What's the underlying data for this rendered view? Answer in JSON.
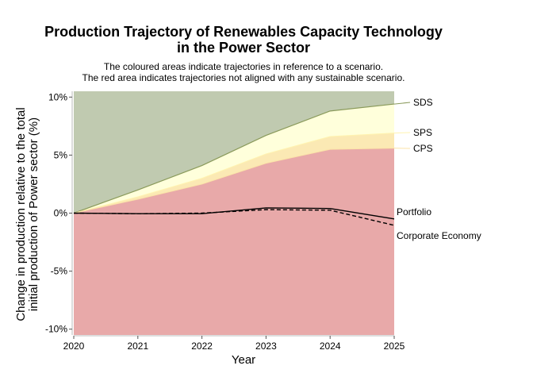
{
  "title_line1": "Production Trajectory of Renewables Capacity Technology",
  "title_line2": "in the Power Sector",
  "subtitle_line1": "The coloured areas indicate trajectories in reference to a scenario.",
  "subtitle_line2": "The red area indicates trajectories not aligned with any sustainable scenario.",
  "colors": {
    "sds_area": "#c0cab0",
    "sps_area": "#ffffdb",
    "cps_area": "#fbe9b4",
    "red_area": "#e8a9a9",
    "sds_line": "#8a9a5b",
    "sps_line": "#ffffcc",
    "cps_line": "#fbe3a8"
  },
  "chart_data": {
    "type": "area",
    "x": [
      2020,
      2021,
      2022,
      2023,
      2024,
      2025
    ],
    "xlabel": "Year",
    "ylabel_line1": "Change in production relative to the total",
    "ylabel_line2": "initial production of Power sector (%)",
    "ylim": [
      -10.5,
      10.5
    ],
    "yticks": [
      -10,
      -5,
      0,
      5,
      10
    ],
    "ytick_labels": [
      "-10%",
      "-5%",
      "0%",
      "5%",
      "10%"
    ],
    "grid": false,
    "bands": [
      {
        "name": "SDS",
        "values": [
          0,
          2.0,
          4.1,
          6.7,
          8.8,
          9.4
        ]
      },
      {
        "name": "SPS",
        "values": [
          0,
          1.4,
          3.0,
          5.1,
          6.6,
          6.9
        ]
      },
      {
        "name": "CPS",
        "values": [
          0,
          1.2,
          2.5,
          4.3,
          5.5,
          5.6
        ]
      }
    ],
    "series": [
      {
        "name": "Portfolio",
        "style": "solid",
        "values": [
          0,
          -0.05,
          -0.05,
          0.45,
          0.4,
          -0.5
        ]
      },
      {
        "name": "Corporate Economy",
        "style": "dashed",
        "values": [
          0,
          -0.05,
          0.0,
          0.3,
          0.25,
          -1.05
        ]
      }
    ]
  }
}
